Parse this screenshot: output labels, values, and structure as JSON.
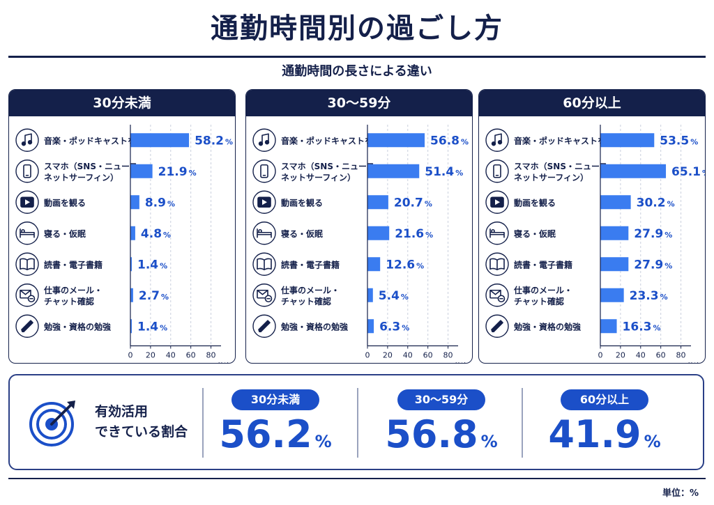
{
  "header": {
    "title": "通勤時間別の過ごし方",
    "subtitle": "通勤時間の長さによる違い"
  },
  "colors": {
    "navy": "#14204a",
    "accent": "#1b4fc8",
    "bar": "#3a7cf0"
  },
  "chart_data": [
    {
      "type": "bar",
      "title": "30分未満",
      "categories": [
        "音楽・ポッドキャストを聴く",
        "スマホ（SNS・ニュース・ネットサーフィン）",
        "動画を観る",
        "寝る・仮眠",
        "読書・電子書籍",
        "仕事のメール・チャット確認",
        "勉強・資格の勉強"
      ],
      "values": [
        58.2,
        21.9,
        8.9,
        4.8,
        1.4,
        2.7,
        1.4
      ],
      "xlim": [
        0,
        90
      ],
      "xticks": [
        0,
        20,
        40,
        60,
        80
      ],
      "unit": "(%)"
    },
    {
      "type": "bar",
      "title": "30〜59分",
      "categories": [
        "音楽・ポッドキャストを聴く",
        "スマホ（SNS・ニュース・ネットサーフィン）",
        "動画を観る",
        "寝る・仮眠",
        "読書・電子書籍",
        "仕事のメール・チャット確認",
        "勉強・資格の勉強"
      ],
      "values": [
        56.8,
        51.4,
        20.7,
        21.6,
        12.6,
        5.4,
        6.3
      ],
      "xlim": [
        0,
        90
      ],
      "xticks": [
        0,
        20,
        40,
        60,
        80
      ],
      "unit": "(%)"
    },
    {
      "type": "bar",
      "title": "60分以上",
      "categories": [
        "音楽・ポッドキャストを聴く",
        "スマホ（SNS・ニュース・ネットサーフィン）",
        "動画を観る",
        "寝る・仮眠",
        "読書・電子書籍",
        "仕事のメール・チャット確認",
        "勉強・資格の勉強"
      ],
      "values": [
        53.5,
        65.1,
        30.2,
        27.9,
        27.9,
        23.3,
        16.3
      ],
      "xlim": [
        0,
        90
      ],
      "xticks": [
        0,
        20,
        40,
        60,
        80
      ],
      "unit": "(%)"
    }
  ],
  "rows": [
    {
      "icon": "music-note-icon",
      "lines": [
        "音楽・ポッドキャストを聴く"
      ]
    },
    {
      "icon": "smartphone-icon",
      "lines": [
        "スマホ（SNS・ニュース・",
        "ネットサーフィン）"
      ]
    },
    {
      "icon": "video-play-icon",
      "lines": [
        "動画を観る"
      ]
    },
    {
      "icon": "bed-icon",
      "lines": [
        "寝る・仮眠"
      ]
    },
    {
      "icon": "book-icon",
      "lines": [
        "読書・電子書籍"
      ]
    },
    {
      "icon": "mail-chat-icon",
      "lines": [
        "仕事のメール・",
        "チャット確認"
      ]
    },
    {
      "icon": "pencil-icon",
      "lines": [
        "勉強・資格の勉強"
      ]
    }
  ],
  "summary": {
    "label_line1": "有効活用",
    "label_line2": "できている割合",
    "icon": "target-icon",
    "groups": [
      {
        "name": "30分未満",
        "value": "56.2",
        "unit": "%"
      },
      {
        "name": "30〜59分",
        "value": "56.8",
        "unit": "%"
      },
      {
        "name": "60分以上",
        "value": "41.9",
        "unit": "%"
      }
    ]
  },
  "footer": {
    "unit_label": "単位：%"
  }
}
